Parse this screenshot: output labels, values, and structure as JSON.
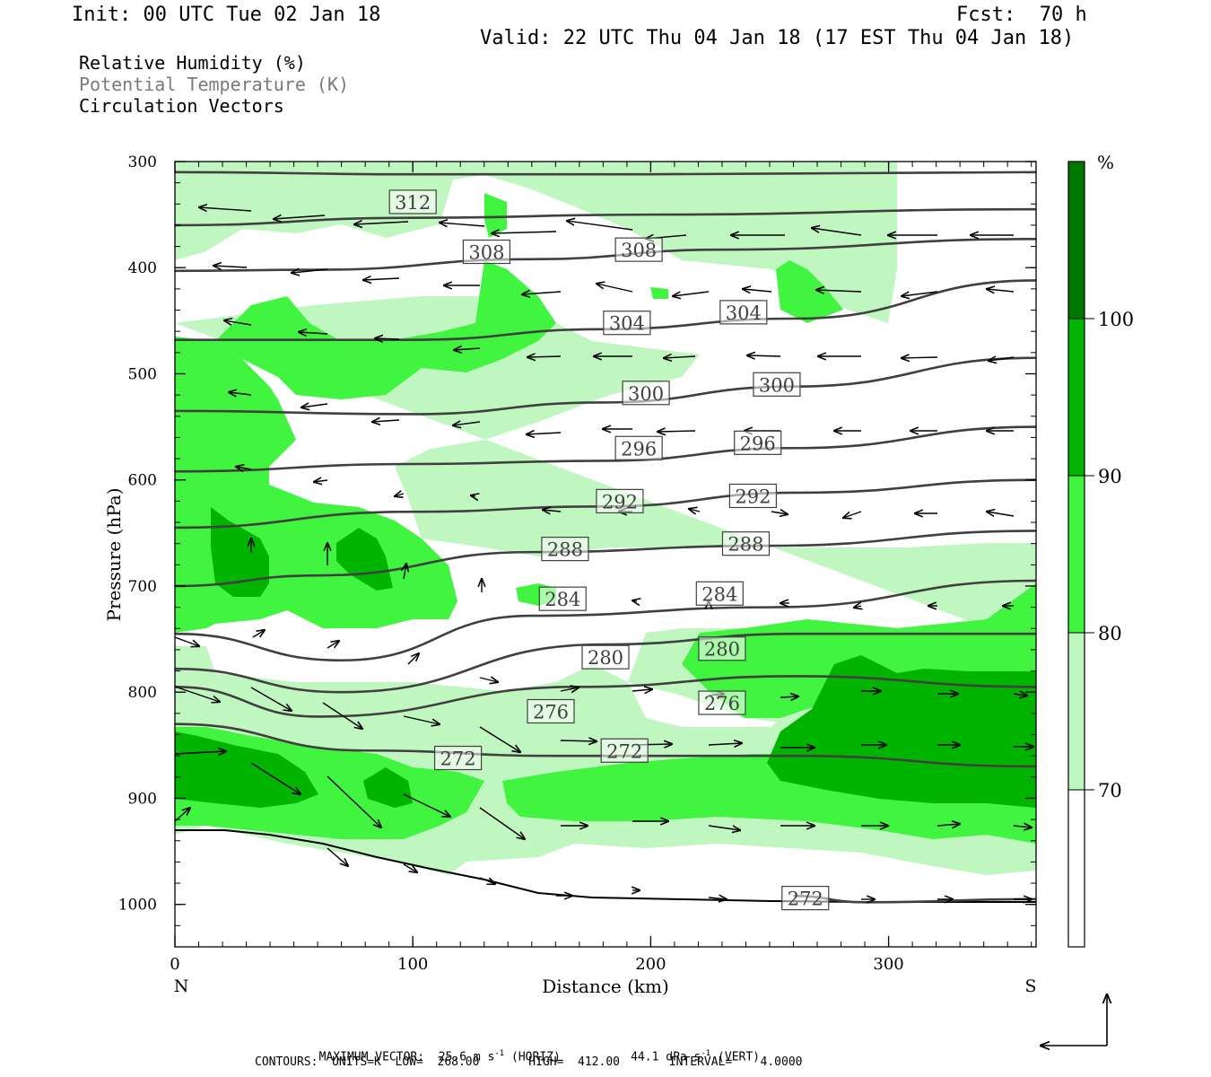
{
  "header": {
    "init": "Init: 00 UTC Tue 02 Jan 18",
    "fcst": "Fcst:  70 h",
    "valid": "Valid: 22 UTC Thu 04 Jan 18 (17 EST Thu 04 Jan 18)"
  },
  "legend_lines": [
    "Relative Humidity (%)",
    "Potential Temperature (K)",
    "Circulation Vectors"
  ],
  "colors": {
    "rh_70": "#c0f7c0",
    "rh_80": "#40f440",
    "rh_90": "#00b400",
    "rh_100": "#007800",
    "contour": "#404040",
    "vector": "#000000"
  },
  "footer": {
    "max_label": "MAXIMUM VECTOR:",
    "max_horiz": "25.6 m s",
    "max_horiz_unit": "(HORIZ)",
    "max_vert": "44.1 dPa s",
    "max_vert_unit": "(VERT)",
    "exp": "-1",
    "contours": "CONTOURS:  UNITS=K  LOW=  268.00       HIGH=  412.00       INTERVAL=    4.0000"
  },
  "chart_data": {
    "type": "cross-section",
    "xlabel": "Distance (km)",
    "ylabel": "Pressure (hPa)",
    "x_ticks": [
      0,
      100,
      200,
      300
    ],
    "x_tick_labels": [
      "0",
      "100",
      "200",
      "300"
    ],
    "xlim": [
      0,
      362
    ],
    "y_ticks": [
      300,
      400,
      500,
      600,
      700,
      800,
      900,
      1000
    ],
    "y_tick_labels": [
      "300",
      "400",
      "500",
      "600",
      "700",
      "800",
      "900",
      "1000"
    ],
    "ylim": [
      300,
      1040
    ],
    "left_end": "N",
    "right_end": "S",
    "colorbar": {
      "unit": "%",
      "levels": [
        70,
        80,
        90,
        100
      ],
      "level_labels": [
        "70",
        "80",
        "90",
        "100"
      ]
    },
    "theta_contours": [
      {
        "label": "312",
        "points": [
          [
            0,
            310
          ],
          [
            100,
            312
          ],
          [
            200,
            312
          ],
          [
            362,
            310
          ]
        ]
      },
      {
        "label": "308",
        "points": [
          [
            0,
            360
          ],
          [
            100,
            353
          ],
          [
            200,
            350
          ],
          [
            362,
            345
          ]
        ]
      },
      {
        "label": "308",
        "points": [
          [
            0,
            403
          ],
          [
            60,
            402
          ],
          [
            150,
            392
          ],
          [
            230,
            383
          ],
          [
            362,
            373
          ]
        ]
      },
      {
        "label": "304",
        "points": [
          [
            0,
            468
          ],
          [
            100,
            468
          ],
          [
            180,
            458
          ],
          [
            260,
            448
          ],
          [
            362,
            412
          ]
        ]
      },
      {
        "label": "300",
        "points": [
          [
            0,
            535
          ],
          [
            100,
            538
          ],
          [
            180,
            527
          ],
          [
            260,
            512
          ],
          [
            362,
            485
          ]
        ]
      },
      {
        "label": "296",
        "points": [
          [
            0,
            592
          ],
          [
            100,
            585
          ],
          [
            180,
            582
          ],
          [
            260,
            570
          ],
          [
            362,
            550
          ]
        ]
      },
      {
        "label": "292",
        "points": [
          [
            0,
            645
          ],
          [
            100,
            630
          ],
          [
            180,
            625
          ],
          [
            262,
            612
          ],
          [
            362,
            600
          ]
        ]
      },
      {
        "label": "288",
        "points": [
          [
            0,
            700
          ],
          [
            60,
            690
          ],
          [
            150,
            668
          ],
          [
            250,
            662
          ],
          [
            362,
            648
          ]
        ]
      },
      {
        "label": "284",
        "points": [
          [
            0,
            745
          ],
          [
            70,
            770
          ],
          [
            150,
            728
          ],
          [
            250,
            720
          ],
          [
            362,
            695
          ]
        ]
      },
      {
        "label": "280",
        "points": [
          [
            0,
            778
          ],
          [
            70,
            800
          ],
          [
            180,
            755
          ],
          [
            262,
            745
          ],
          [
            362,
            745
          ]
        ]
      },
      {
        "label": "276",
        "points": [
          [
            0,
            795
          ],
          [
            60,
            823
          ],
          [
            170,
            795
          ],
          [
            260,
            785
          ],
          [
            362,
            795
          ]
        ]
      },
      {
        "label": "272",
        "points": [
          [
            0,
            830
          ],
          [
            80,
            855
          ],
          [
            160,
            860
          ],
          [
            260,
            860
          ],
          [
            362,
            870
          ]
        ]
      },
      {
        "label": "272",
        "points": [
          [
            260,
            992
          ],
          [
            290,
            998
          ],
          [
            362,
            995
          ]
        ]
      }
    ],
    "contour_labels": [
      {
        "text": "312",
        "x": 100,
        "y": 338
      },
      {
        "text": "308",
        "x": 131,
        "y": 385
      },
      {
        "text": "308",
        "x": 195,
        "y": 383
      },
      {
        "text": "304",
        "x": 190,
        "y": 452
      },
      {
        "text": "304",
        "x": 239,
        "y": 442
      },
      {
        "text": "300",
        "x": 198,
        "y": 518
      },
      {
        "text": "300",
        "x": 253,
        "y": 510
      },
      {
        "text": "296",
        "x": 195,
        "y": 570
      },
      {
        "text": "296",
        "x": 245,
        "y": 565
      },
      {
        "text": "292",
        "x": 187,
        "y": 620
      },
      {
        "text": "292",
        "x": 243,
        "y": 615
      },
      {
        "text": "288",
        "x": 164,
        "y": 665
      },
      {
        "text": "288",
        "x": 240,
        "y": 660
      },
      {
        "text": "284",
        "x": 163,
        "y": 712
      },
      {
        "text": "284",
        "x": 229,
        "y": 707
      },
      {
        "text": "280",
        "x": 181,
        "y": 767
      },
      {
        "text": "280",
        "x": 230,
        "y": 759
      },
      {
        "text": "276",
        "x": 158,
        "y": 818
      },
      {
        "text": "276",
        "x": 230,
        "y": 810
      },
      {
        "text": "272",
        "x": 119,
        "y": 862
      },
      {
        "text": "272",
        "x": 189,
        "y": 855
      },
      {
        "text": "272",
        "x": 265,
        "y": 994
      }
    ]
  }
}
